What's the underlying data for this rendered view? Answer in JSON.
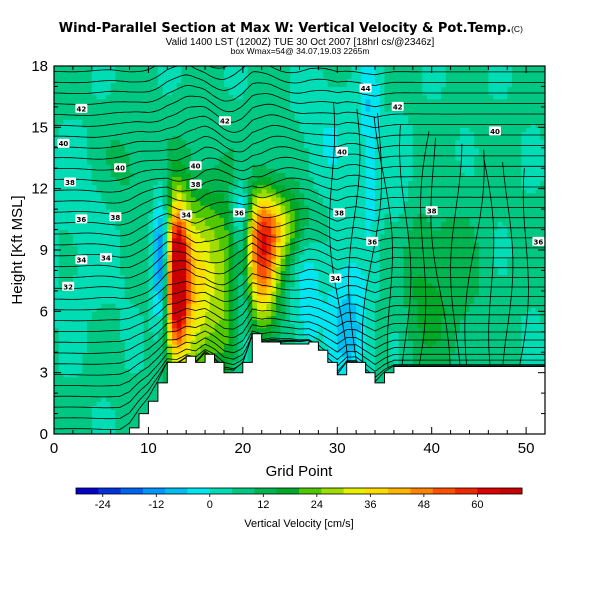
{
  "chart_data": {
    "type": "heatmap",
    "title": "Wind-Parallel Section at Max W: Vertical Velocity & Pot.Temp.",
    "title_mark": "(C)",
    "subtitle_line1": "Valid 1400 LST (1200Z) TUE 30 Oct 2007 [18hrl cs/@2346z]",
    "subtitle_line2": "box Wmax=54@ 34.07,19.03 2265m",
    "xlabel": "Grid Point",
    "ylabel": "Height [Kft MSL]",
    "xlim": [
      0,
      52
    ],
    "ylim": [
      0,
      18
    ],
    "xticks": [
      "0",
      "10",
      "20",
      "30",
      "40",
      "50"
    ],
    "yticks": [
      "0",
      "3",
      "6",
      "9",
      "12",
      "15",
      "18"
    ],
    "colorbar": {
      "label": "Vertical Velocity [cm/s]",
      "ticks": [
        "-24",
        "-12",
        "0",
        "12",
        "24",
        "36",
        "48",
        "60"
      ],
      "tick_values": [
        -24,
        -12,
        0,
        12,
        24,
        36,
        48,
        60
      ],
      "range": [
        -30,
        70
      ],
      "colors": [
        "#0000c8",
        "#0032dc",
        "#0064f0",
        "#0096ff",
        "#00bef0",
        "#00e6f0",
        "#00dcb4",
        "#00c882",
        "#00b450",
        "#00aa28",
        "#50c800",
        "#a0dc00",
        "#e6f000",
        "#ffdc00",
        "#ffb400",
        "#ff8200",
        "#ff5000",
        "#f02800",
        "#dc0000",
        "#c80000"
      ]
    },
    "terrain_profile": {
      "x": [
        0,
        1,
        2,
        3,
        4,
        5,
        6,
        7,
        8,
        9,
        10,
        11,
        12,
        13,
        14,
        15,
        16,
        17,
        18,
        19,
        20,
        21,
        22,
        23,
        24,
        25,
        26,
        27,
        28,
        29,
        30,
        31,
        32,
        33,
        34,
        35,
        36,
        37,
        38,
        39,
        40,
        41,
        42,
        43,
        44,
        45,
        46,
        47,
        48,
        49,
        50,
        51,
        52
      ],
      "height_kft": [
        0.0,
        0.0,
        0.0,
        0.0,
        0.0,
        0.0,
        0.0,
        0.0,
        0.3,
        1.0,
        1.6,
        2.5,
        3.5,
        3.5,
        3.8,
        3.5,
        3.9,
        3.5,
        3.0,
        3.0,
        3.5,
        4.9,
        4.5,
        4.5,
        4.4,
        4.4,
        4.4,
        4.5,
        4.1,
        3.5,
        2.9,
        3.5,
        3.5,
        3.0,
        2.5,
        3.0,
        3.3,
        3.3,
        3.3,
        3.3,
        3.3,
        3.3,
        3.3,
        3.3,
        3.3,
        3.3,
        3.3,
        3.3,
        3.3,
        3.3,
        3.3,
        3.3,
        3.3
      ]
    },
    "w_features": [
      {
        "x": 13.0,
        "y": 7.8,
        "amp": 66,
        "sx": 0.8,
        "sy": 2.3
      },
      {
        "x": 15.0,
        "y": 7.0,
        "amp": 30,
        "sx": 2.2,
        "sy": 3.5
      },
      {
        "x": 22.0,
        "y": 8.3,
        "amp": 42,
        "sx": 1.3,
        "sy": 2.3
      },
      {
        "x": 23.5,
        "y": 10.2,
        "amp": 22,
        "sx": 2.8,
        "sy": 1.3
      },
      {
        "x": 18.5,
        "y": 7.5,
        "amp": 10,
        "sx": 1.0,
        "sy": 3.0
      },
      {
        "x": 11.4,
        "y": 8.3,
        "amp": -30,
        "sx": 0.7,
        "sy": 2.4
      },
      {
        "x": 19.8,
        "y": 10.8,
        "amp": -20,
        "sx": 0.8,
        "sy": 1.2
      },
      {
        "x": 20.0,
        "y": 6.5,
        "amp": -14,
        "sx": 0.8,
        "sy": 2.6
      },
      {
        "x": 26.8,
        "y": 6.5,
        "amp": -9,
        "sx": 1.1,
        "sy": 3.5
      },
      {
        "x": 31.5,
        "y": 5.0,
        "amp": -14,
        "sx": 1.5,
        "sy": 1.8
      },
      {
        "x": 30.0,
        "y": 9.0,
        "amp": -6,
        "sx": 1.5,
        "sy": 2.0
      },
      {
        "x": 33.5,
        "y": 14.5,
        "amp": -12,
        "sx": 0.7,
        "sy": 3.2
      },
      {
        "x": 36.5,
        "y": 9.0,
        "amp": -6,
        "sx": 1.0,
        "sy": 4.0
      },
      {
        "x": 29.0,
        "y": 15.0,
        "amp": -5,
        "sx": 2.0,
        "sy": 2.0
      },
      {
        "x": 38.0,
        "y": 7.0,
        "amp": 8,
        "sx": 2.0,
        "sy": 3.0
      },
      {
        "x": 42.0,
        "y": 7.0,
        "amp": 7,
        "sx": 2.5,
        "sy": 3.0
      },
      {
        "x": 8.0,
        "y": 13.0,
        "amp": 7,
        "sx": 2.0,
        "sy": 2.0
      },
      {
        "x": 4.0,
        "y": 10.0,
        "amp": -4,
        "sx": 3.0,
        "sy": 3.0
      }
    ],
    "theta_contour_labels": [
      {
        "text": "42",
        "x": 2.9,
        "y": 15.9
      },
      {
        "text": "40",
        "x": 1.0,
        "y": 14.2
      },
      {
        "text": "38",
        "x": 1.7,
        "y": 12.3
      },
      {
        "text": "36",
        "x": 2.9,
        "y": 10.5
      },
      {
        "text": "34",
        "x": 2.9,
        "y": 8.5
      },
      {
        "text": "32",
        "x": 1.5,
        "y": 7.2
      },
      {
        "text": "40",
        "x": 7.0,
        "y": 13.0
      },
      {
        "text": "38",
        "x": 6.5,
        "y": 10.6
      },
      {
        "text": "34",
        "x": 5.5,
        "y": 8.6
      },
      {
        "text": "40",
        "x": 15.0,
        "y": 13.1
      },
      {
        "text": "38",
        "x": 15.0,
        "y": 12.2
      },
      {
        "text": "34",
        "x": 14.0,
        "y": 10.7
      },
      {
        "text": "36",
        "x": 19.6,
        "y": 10.8
      },
      {
        "text": "42",
        "x": 18.1,
        "y": 15.3
      },
      {
        "text": "40",
        "x": 30.5,
        "y": 13.8
      },
      {
        "text": "38",
        "x": 30.2,
        "y": 10.8
      },
      {
        "text": "36",
        "x": 33.7,
        "y": 9.4
      },
      {
        "text": "34",
        "x": 29.8,
        "y": 7.6
      },
      {
        "text": "44",
        "x": 33.0,
        "y": 16.9
      },
      {
        "text": "42",
        "x": 36.4,
        "y": 16.0
      },
      {
        "text": "40",
        "x": 46.7,
        "y": 14.8
      },
      {
        "text": "38",
        "x": 40.0,
        "y": 10.9
      },
      {
        "text": "36",
        "x": 51.3,
        "y": 9.4
      }
    ],
    "grid": false,
    "legend": "colorbar-bottom"
  }
}
